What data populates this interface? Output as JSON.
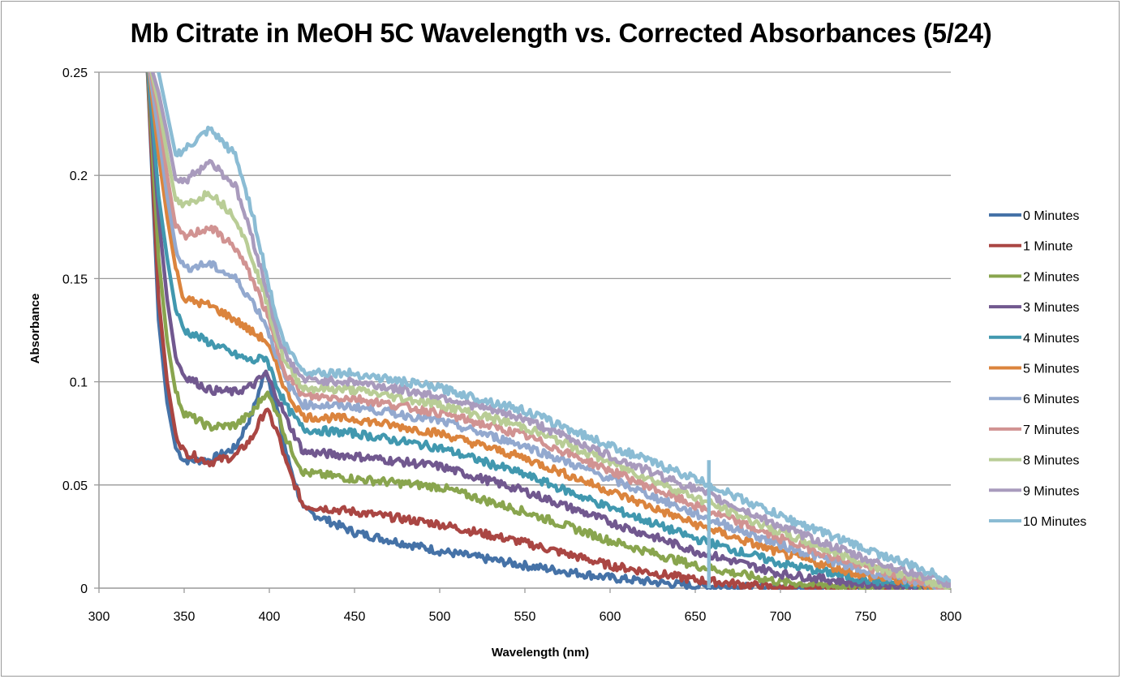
{
  "chart_data": {
    "type": "line",
    "title": "Mb Citrate in MeOH 5C Wavelength vs. Corrected Absorbances (5/24)",
    "xlabel": "Wavelength (nm)",
    "ylabel": "Absorbance",
    "xlim": [
      300,
      800
    ],
    "ylim": [
      0,
      0.25
    ],
    "xticks": [
      300,
      350,
      400,
      450,
      500,
      550,
      600,
      650,
      700,
      750,
      800
    ],
    "yticks": [
      0,
      0.05,
      0.1,
      0.15,
      0.2,
      0.25
    ],
    "ytick_labels": [
      "0",
      "0.05",
      "0.1",
      "0.15",
      "0.2",
      "0.25"
    ],
    "grid": "horizontal",
    "legend_position": "right",
    "x": [
      328,
      335,
      340,
      345,
      350,
      365,
      380,
      390,
      398,
      405,
      410,
      420,
      450,
      500,
      550,
      600,
      650,
      700,
      750,
      800
    ],
    "series": [
      {
        "name": "0 Minutes",
        "color": "#4572A7",
        "values": [
          0.26,
          0.13,
          0.09,
          0.068,
          0.062,
          0.062,
          0.068,
          0.085,
          0.106,
          0.085,
          0.065,
          0.038,
          0.027,
          0.018,
          0.011,
          0.005,
          0.001,
          0,
          0,
          0
        ]
      },
      {
        "name": "1 Minute",
        "color": "#AA4643",
        "values": [
          0.26,
          0.14,
          0.1,
          0.075,
          0.066,
          0.061,
          0.064,
          0.073,
          0.087,
          0.075,
          0.06,
          0.04,
          0.037,
          0.031,
          0.022,
          0.011,
          0.004,
          0.0,
          0,
          0
        ]
      },
      {
        "name": "2 Minutes",
        "color": "#89A54E",
        "values": [
          0.26,
          0.16,
          0.12,
          0.095,
          0.085,
          0.078,
          0.079,
          0.085,
          0.095,
          0.085,
          0.072,
          0.056,
          0.053,
          0.049,
          0.037,
          0.023,
          0.011,
          0.003,
          0.0,
          0
        ]
      },
      {
        "name": "3 Minutes",
        "color": "#71588F",
        "values": [
          0.26,
          0.18,
          0.14,
          0.112,
          0.103,
          0.096,
          0.095,
          0.098,
          0.104,
          0.092,
          0.082,
          0.066,
          0.064,
          0.059,
          0.047,
          0.032,
          0.018,
          0.007,
          0.002,
          0
        ]
      },
      {
        "name": "4 Minutes",
        "color": "#4198AF",
        "values": [
          0.26,
          0.19,
          0.16,
          0.135,
          0.125,
          0.119,
          0.113,
          0.11,
          0.112,
          0.097,
          0.088,
          0.077,
          0.075,
          0.068,
          0.055,
          0.039,
          0.024,
          0.012,
          0.004,
          0
        ]
      },
      {
        "name": "5 Minutes",
        "color": "#DB843D",
        "values": [
          0.26,
          0.21,
          0.18,
          0.155,
          0.14,
          0.137,
          0.13,
          0.124,
          0.12,
          0.106,
          0.095,
          0.083,
          0.082,
          0.075,
          0.063,
          0.047,
          0.031,
          0.017,
          0.006,
          0
        ]
      },
      {
        "name": "6 Minutes",
        "color": "#93A9CF",
        "values": [
          0.26,
          0.22,
          0.19,
          0.165,
          0.155,
          0.157,
          0.15,
          0.139,
          0.128,
          0.111,
          0.1,
          0.089,
          0.088,
          0.081,
          0.069,
          0.053,
          0.036,
          0.021,
          0.008,
          0
        ]
      },
      {
        "name": "7 Minutes",
        "color": "#D19392",
        "values": [
          0.26,
          0.23,
          0.2,
          0.175,
          0.17,
          0.175,
          0.165,
          0.15,
          0.134,
          0.115,
          0.104,
          0.093,
          0.092,
          0.085,
          0.074,
          0.057,
          0.04,
          0.024,
          0.01,
          0
        ]
      },
      {
        "name": "8 Minutes",
        "color": "#B9CD96",
        "values": [
          0.26,
          0.235,
          0.21,
          0.188,
          0.185,
          0.192,
          0.18,
          0.16,
          0.14,
          0.119,
          0.108,
          0.097,
          0.096,
          0.089,
          0.078,
          0.061,
          0.044,
          0.027,
          0.012,
          0
        ]
      },
      {
        "name": "9 Minutes",
        "color": "#A99BBD",
        "values": [
          0.26,
          0.24,
          0.22,
          0.198,
          0.197,
          0.207,
          0.195,
          0.17,
          0.146,
          0.123,
          0.112,
          0.101,
          0.1,
          0.093,
          0.082,
          0.064,
          0.048,
          0.03,
          0.014,
          0.002
        ]
      },
      {
        "name": "10 Minutes",
        "color": "#8BBCD4",
        "values": [
          0.26,
          0.25,
          0.23,
          0.21,
          0.212,
          0.222,
          0.21,
          0.182,
          0.153,
          0.128,
          0.117,
          0.105,
          0.104,
          0.097,
          0.086,
          0.069,
          0.053,
          0.035,
          0.019,
          0.004
        ]
      }
    ]
  }
}
